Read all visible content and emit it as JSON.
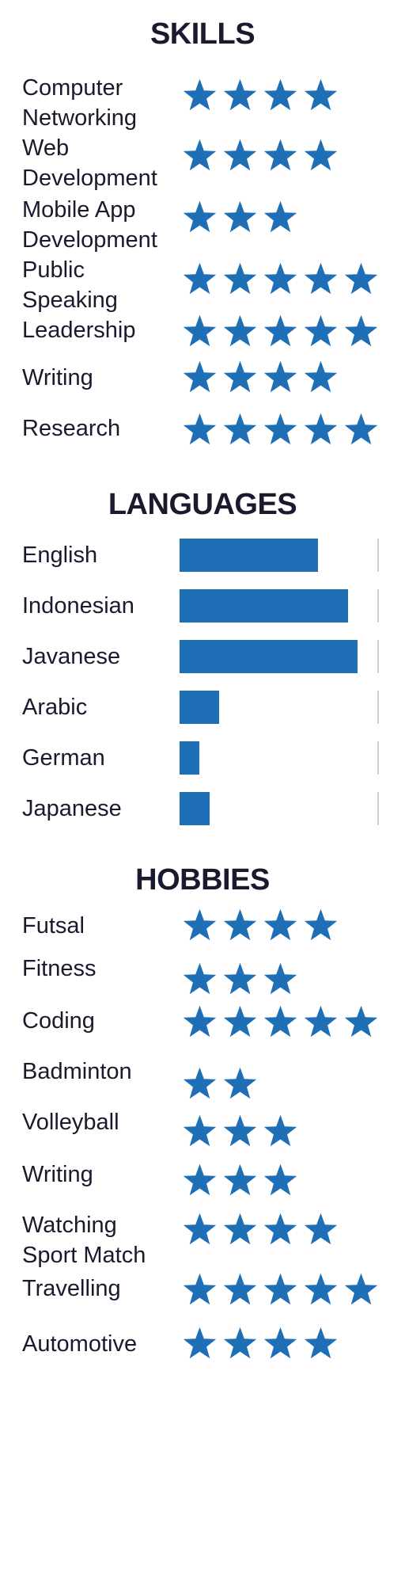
{
  "colors": {
    "accent": "#1f6fb6",
    "text": "#1a1a2e",
    "track_edge": "#cfcfcf"
  },
  "skills": {
    "title": "SKILLS",
    "items": [
      {
        "label": "Computer\nNetworking",
        "stars": 4
      },
      {
        "label": "Web\nDevelopment",
        "stars": 4
      },
      {
        "label": "Mobile App\nDevelopment",
        "stars": 3
      },
      {
        "label": "Public\nSpeaking",
        "stars": 5
      },
      {
        "label": "Leadership",
        "stars": 5
      },
      {
        "label": "Writing",
        "stars": 4
      },
      {
        "label": "Research",
        "stars": 5
      }
    ]
  },
  "languages": {
    "title": "LANGUAGES",
    "items": [
      {
        "label": "English",
        "level": 0.7
      },
      {
        "label": "Indonesian",
        "level": 0.85
      },
      {
        "label": "Javanese",
        "level": 0.9
      },
      {
        "label": "Arabic",
        "level": 0.2
      },
      {
        "label": "German",
        "level": 0.1
      },
      {
        "label": "Japanese",
        "level": 0.15
      }
    ]
  },
  "hobbies": {
    "title": "HOBBIES",
    "items": [
      {
        "label": "Futsal",
        "stars": 4
      },
      {
        "label": "Fitness",
        "stars": 3
      },
      {
        "label": "Coding",
        "stars": 5
      },
      {
        "label": "Badminton",
        "stars": 2
      },
      {
        "label": "Volleyball",
        "stars": 3
      },
      {
        "label": "Writing",
        "stars": 3
      },
      {
        "label": "Watching\nSport Match",
        "stars": 4
      },
      {
        "label": "Travelling",
        "stars": 5
      },
      {
        "label": "Automotive",
        "stars": 4
      }
    ]
  }
}
